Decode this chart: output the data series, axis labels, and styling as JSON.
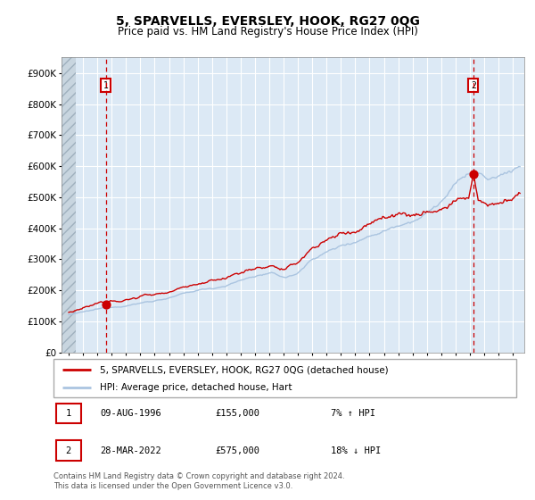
{
  "title": "5, SPARVELLS, EVERSLEY, HOOK, RG27 0QG",
  "subtitle": "Price paid vs. HM Land Registry's House Price Index (HPI)",
  "legend_line1": "5, SPARVELLS, EVERSLEY, HOOK, RG27 0QG (detached house)",
  "legend_line2": "HPI: Average price, detached house, Hart",
  "annotation1_label": "1",
  "annotation1_date": "09-AUG-1996",
  "annotation1_price": "£155,000",
  "annotation1_hpi": "7% ↑ HPI",
  "annotation1_year": 1996.6,
  "annotation1_value": 155000,
  "annotation2_label": "2",
  "annotation2_date": "28-MAR-2022",
  "annotation2_price": "£575,000",
  "annotation2_hpi": "18% ↓ HPI",
  "annotation2_year": 2022.24,
  "annotation2_value": 575000,
  "footer": "Contains HM Land Registry data © Crown copyright and database right 2024.\nThis data is licensed under the Open Government Licence v3.0.",
  "red_color": "#cc0000",
  "blue_color": "#aac4e0",
  "bg_color": "#dce9f5",
  "grid_color": "#ffffff",
  "ylim": [
    0,
    950000
  ],
  "xlim_start": 1993.5,
  "xlim_end": 2025.8,
  "hatch_end": 1994.5
}
